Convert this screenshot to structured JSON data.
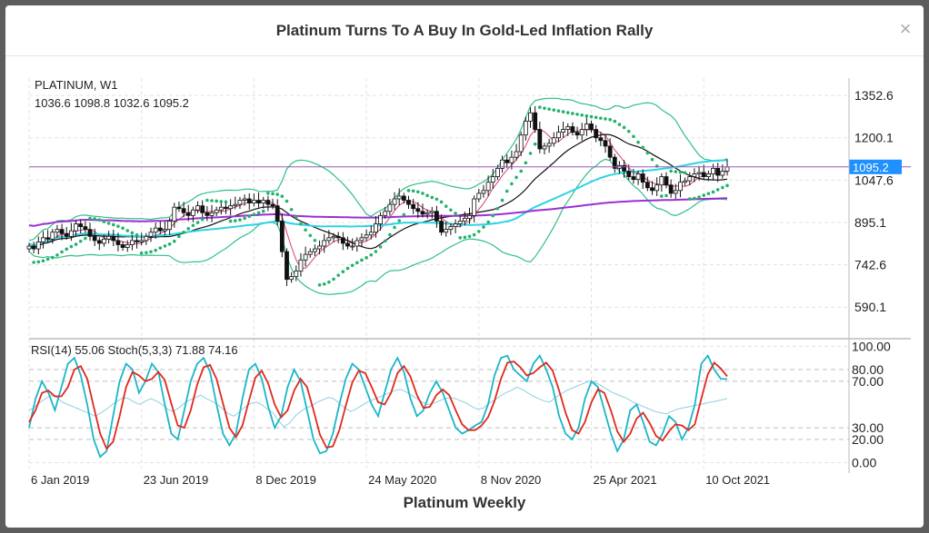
{
  "modal": {
    "title": "Platinum Turns To A Buy In Gold-Led Inflation Rally",
    "close_glyph": "×",
    "caption": "Platinum Weekly"
  },
  "colors": {
    "bollinger": "#2fbf8a",
    "sar": "#21b36b",
    "ma_black": "#111111",
    "ma_cyan": "#2ed3e6",
    "ma_purple": "#9b30d0",
    "ma_pink": "#d0407a",
    "price_line": "#9b59b6",
    "price_tag": "#1e90ff",
    "rsi": "#8ecfe0",
    "stoch_k": "#1ab6c8",
    "stoch_d": "#e0281e"
  },
  "chart_data": [
    {
      "type": "candlestick",
      "title": "PLATINUM, W1",
      "ohlc_label": "1036.6 1098.8 1032.6 1095.2",
      "last_price_label": "1095.2",
      "y_ticks": [
        1352.6,
        1200.1,
        1047.6,
        895.1,
        742.6,
        590.1
      ],
      "ylim": [
        483,
        1415
      ],
      "x_ticks": [
        "6 Jan 2019",
        "23 Jun 2019",
        "8 Dec 2019",
        "24 May 2020",
        "8 Nov 2020",
        "25 Apr 2021",
        "10 Oct 2021"
      ],
      "x_range_weeks": [
        0,
        175
      ],
      "x_tick_weeks": [
        0,
        24,
        48,
        72,
        96,
        120,
        144
      ],
      "last_price": 1095.2,
      "indicators": [
        "Bollinger Bands",
        "Parabolic SAR",
        "Moving Averages"
      ],
      "closes": [
        810,
        800,
        825,
        840,
        835,
        860,
        870,
        855,
        845,
        865,
        890,
        880,
        870,
        845,
        830,
        820,
        835,
        845,
        830,
        815,
        805,
        815,
        830,
        825,
        830,
        845,
        860,
        875,
        865,
        870,
        900,
        950,
        945,
        930,
        920,
        940,
        955,
        930,
        920,
        930,
        940,
        950,
        945,
        955,
        960,
        975,
        980,
        965,
        975,
        965,
        975,
        960,
        955,
        900,
        790,
        690,
        700,
        720,
        760,
        780,
        790,
        800,
        810,
        830,
        840,
        845,
        840,
        820,
        810,
        810,
        830,
        840,
        850,
        860,
        890,
        920,
        935,
        960,
        980,
        990,
        975,
        960,
        945,
        935,
        925,
        930,
        935,
        900,
        860,
        870,
        880,
        890,
        900,
        910,
        920,
        980,
        1000,
        1010,
        1040,
        1060,
        1090,
        1120,
        1110,
        1130,
        1150,
        1210,
        1260,
        1290,
        1230,
        1160,
        1170,
        1180,
        1200,
        1220,
        1230,
        1240,
        1220,
        1210,
        1230,
        1250,
        1230,
        1200,
        1190,
        1170,
        1130,
        1090,
        1100,
        1080,
        1060,
        1050,
        1070,
        1040,
        1020,
        1010,
        1030,
        1060,
        1030,
        1000,
        1010,
        1040,
        1045,
        1060,
        1070,
        1075,
        1060,
        1070,
        1090,
        1065,
        1080,
        1095.2
      ]
    },
    {
      "type": "line",
      "title": "RSI(14) 55.06 Stoch(5,3,3) 71.88 74.16",
      "y_ticks": [
        100.0,
        80.0,
        70.0,
        30.0,
        20.0,
        0.0
      ],
      "y_tick_labels": [
        "100.00",
        "80.00",
        "70.00",
        "30.00",
        "20.00",
        "0.00"
      ],
      "ylim": [
        -5,
        105
      ],
      "series": [
        {
          "name": "RSI(14)",
          "last": 55.06,
          "values": [
            45,
            48,
            52,
            55,
            58,
            56,
            52,
            50,
            48,
            46,
            44,
            42,
            40,
            43,
            46,
            50,
            53,
            56,
            55,
            52,
            50,
            53,
            55,
            53,
            50,
            46,
            44,
            47,
            51,
            54,
            56,
            58,
            55,
            53,
            50,
            46,
            42,
            40,
            44,
            48,
            51,
            52,
            50,
            46,
            43,
            36,
            31,
            34,
            40,
            44,
            47,
            49,
            52,
            54,
            56,
            55,
            51,
            47,
            44,
            46,
            49,
            52,
            54,
            56,
            58,
            60,
            62,
            63,
            61,
            58,
            55,
            52,
            50,
            51,
            53,
            55,
            56,
            55,
            53,
            51,
            48,
            46,
            47,
            51,
            54,
            57,
            60,
            62,
            65,
            63,
            60,
            57,
            55,
            53,
            52,
            56,
            59,
            62,
            64,
            66,
            68,
            70,
            69,
            67,
            64,
            61,
            59,
            57,
            55,
            52,
            50,
            48,
            46,
            44,
            43,
            42,
            44,
            46,
            47,
            48,
            49,
            50,
            51,
            52,
            53,
            54,
            55.06
          ]
        },
        {
          "name": "Stoch %K",
          "last": 71.88,
          "values": [
            30,
            55,
            70,
            60,
            45,
            65,
            85,
            90,
            75,
            50,
            20,
            5,
            10,
            40,
            70,
            85,
            80,
            60,
            70,
            85,
            78,
            50,
            25,
            20,
            45,
            70,
            85,
            90,
            78,
            50,
            25,
            15,
            25,
            55,
            80,
            85,
            72,
            48,
            30,
            40,
            65,
            80,
            70,
            45,
            20,
            8,
            10,
            25,
            50,
            72,
            85,
            80,
            65,
            50,
            40,
            60,
            80,
            90,
            78,
            55,
            40,
            45,
            60,
            70,
            60,
            45,
            30,
            25,
            28,
            32,
            35,
            50,
            75,
            90,
            92,
            80,
            75,
            70,
            85,
            92,
            80,
            65,
            40,
            25,
            20,
            30,
            55,
            70,
            65,
            45,
            25,
            10,
            20,
            45,
            50,
            35,
            18,
            15,
            25,
            40,
            35,
            20,
            30,
            50,
            85,
            92,
            80,
            72,
            71.88
          ]
        },
        {
          "name": "Stoch %D",
          "last": 74.16,
          "values": [
            35,
            45,
            60,
            62,
            57,
            57,
            65,
            80,
            83,
            72,
            48,
            25,
            12,
            18,
            40,
            65,
            78,
            75,
            70,
            72,
            78,
            71,
            51,
            32,
            30,
            45,
            67,
            82,
            84,
            72,
            51,
            30,
            22,
            32,
            53,
            73,
            79,
            68,
            50,
            39,
            45,
            62,
            72,
            65,
            45,
            24,
            13,
            14,
            28,
            49,
            69,
            79,
            77,
            65,
            52,
            50,
            60,
            77,
            83,
            74,
            58,
            47,
            48,
            58,
            63,
            58,
            45,
            33,
            28,
            28,
            32,
            39,
            53,
            72,
            86,
            87,
            82,
            75,
            77,
            82,
            86,
            79,
            62,
            43,
            28,
            25,
            35,
            52,
            63,
            60,
            45,
            27,
            18,
            25,
            38,
            43,
            34,
            23,
            19,
            27,
            33,
            32,
            28,
            33,
            55,
            76,
            86,
            81,
            74.16
          ]
        }
      ]
    }
  ]
}
